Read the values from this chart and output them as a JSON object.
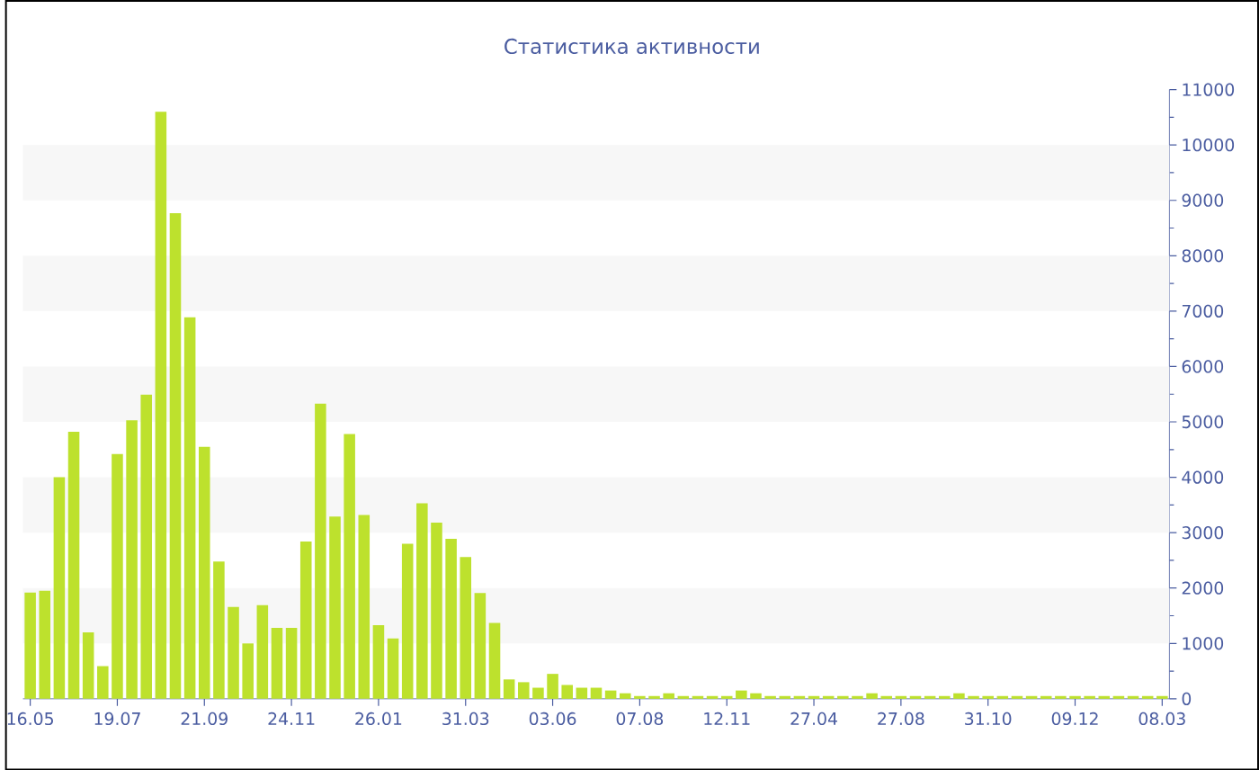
{
  "chart_data": {
    "type": "bar",
    "title": "Статистика активности",
    "categories": [
      "16.05",
      null,
      null,
      null,
      null,
      null,
      "19.07",
      null,
      null,
      null,
      null,
      null,
      "21.09",
      null,
      null,
      null,
      null,
      null,
      "24.11",
      null,
      null,
      null,
      null,
      null,
      "26.01",
      null,
      null,
      null,
      null,
      null,
      "31.03",
      null,
      null,
      null,
      null,
      null,
      "03.06",
      null,
      null,
      null,
      null,
      null,
      "07.08",
      null,
      null,
      null,
      null,
      null,
      "12.11",
      null,
      null,
      null,
      null,
      null,
      "27.04",
      null,
      null,
      null,
      null,
      null,
      "27.08",
      null,
      null,
      null,
      null,
      null,
      "31.10",
      null,
      null,
      null,
      null,
      null,
      "09.12",
      null,
      null,
      null,
      null,
      null,
      "08.03"
    ],
    "values": [
      1920,
      1950,
      4000,
      4820,
      1200,
      590,
      4420,
      5030,
      5490,
      10600,
      8770,
      6890,
      4550,
      2480,
      1660,
      1000,
      1690,
      1280,
      1280,
      2840,
      5330,
      3290,
      4780,
      3320,
      1330,
      1090,
      2800,
      3530,
      3180,
      2890,
      2560,
      1910,
      1370,
      350,
      300,
      200,
      450,
      250,
      200,
      200,
      150,
      100,
      50,
      50,
      100,
      50,
      50,
      50,
      50,
      150,
      100,
      50,
      50,
      50,
      50,
      50,
      50,
      50,
      100,
      50,
      50,
      50,
      50,
      50,
      100,
      50,
      50,
      50,
      50,
      50,
      50,
      50,
      50,
      50,
      50,
      50,
      50,
      50,
      50
    ],
    "color": "#bde12d",
    "ylim": [
      0,
      11000
    ],
    "yticks": [
      0,
      1000,
      2000,
      3000,
      4000,
      5000,
      6000,
      7000,
      8000,
      9000,
      10000,
      11000
    ],
    "bands": [
      {
        "axis": "y",
        "from": 1000,
        "to": 2000,
        "color": "#f7f7f7"
      },
      {
        "axis": "y",
        "from": 3000,
        "to": 4000,
        "color": "#f7f7f7"
      },
      {
        "axis": "y",
        "from": 5000,
        "to": 6000,
        "color": "#f7f7f7"
      },
      {
        "axis": "y",
        "from": 7000,
        "to": 8000,
        "color": "#f7f7f7"
      },
      {
        "axis": "y",
        "from": 9000,
        "to": 10000,
        "color": "#f7f7f7"
      }
    ]
  }
}
